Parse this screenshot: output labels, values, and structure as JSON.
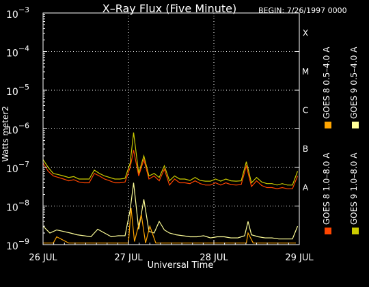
{
  "chart_data": {
    "type": "line",
    "title": "X–Ray Flux (Five Minute)",
    "begin_label": "BEGIN: 7/26/1997 0000",
    "xlabel": "Universal Time",
    "ylabel": "Watts meter2",
    "y_scale": "log",
    "ylim": [
      1e-09,
      0.001
    ],
    "x_ticks": [
      "26 JUL",
      "27 JUL",
      "28 JUL",
      "29 JUL"
    ],
    "xlim_days": [
      0,
      3
    ],
    "y_ticks": [
      {
        "base": "10",
        "exp": "−9",
        "value": 1e-09
      },
      {
        "base": "10",
        "exp": "−8",
        "value": 1e-08
      },
      {
        "base": "10",
        "exp": "−7",
        "value": 1e-07
      },
      {
        "base": "10",
        "exp": "−6",
        "value": 1e-06
      },
      {
        "base": "10",
        "exp": "−5",
        "value": 1e-05
      },
      {
        "base": "10",
        "exp": "−4",
        "value": 0.0001
      },
      {
        "base": "10",
        "exp": "−3",
        "value": 0.001
      }
    ],
    "flare_classes": [
      {
        "label": "A",
        "value": 1e-08
      },
      {
        "label": "B",
        "value": 1e-07
      },
      {
        "label": "C",
        "value": 1e-06
      },
      {
        "label": "M",
        "value": 1e-05
      },
      {
        "label": "X",
        "value": 0.0001
      }
    ],
    "grid": true,
    "series": [
      {
        "name": "GOES 8  1.0–8.0 A",
        "color": "#ff4500",
        "x": [
          0,
          0.06,
          0.12,
          0.18,
          0.24,
          0.3,
          0.36,
          0.42,
          0.48,
          0.54,
          0.6,
          0.66,
          0.72,
          0.78,
          0.84,
          0.9,
          0.96,
          1.02,
          1.06,
          1.12,
          1.18,
          1.24,
          1.3,
          1.36,
          1.42,
          1.48,
          1.54,
          1.6,
          1.66,
          1.72,
          1.78,
          1.84,
          1.9,
          1.96,
          2.02,
          2.08,
          2.14,
          2.2,
          2.26,
          2.32,
          2.38,
          2.44,
          2.5,
          2.56,
          2.62,
          2.68,
          2.74,
          2.8,
          2.86,
          2.92,
          2.98
        ],
        "y": [
          1.3e-07,
          8e-08,
          6e-08,
          5.5e-08,
          5e-08,
          4.5e-08,
          4.8e-08,
          4.2e-08,
          4e-08,
          4e-08,
          7e-08,
          6e-08,
          5e-08,
          4.5e-08,
          4e-08,
          4e-08,
          4.2e-08,
          1e-07,
          2.8e-07,
          6e-08,
          1.6e-07,
          5e-08,
          6e-08,
          4.5e-08,
          9e-08,
          3.5e-08,
          5e-08,
          4e-08,
          4e-08,
          3.8e-08,
          4.5e-08,
          3.8e-08,
          3.5e-08,
          3.5e-08,
          4e-08,
          3.5e-08,
          4e-08,
          3.6e-08,
          3.5e-08,
          3.6e-08,
          1.1e-07,
          3.2e-08,
          4.5e-08,
          3.4e-08,
          3e-08,
          3e-08,
          2.8e-08,
          3e-08,
          2.8e-08,
          2.8e-08,
          6e-08
        ]
      },
      {
        "name": "GOES 8  0.5–4.0 A",
        "color": "#ffa500",
        "x": [
          0,
          0.12,
          0.16,
          0.3,
          0.52,
          0.7,
          0.92,
          1.0,
          1.03,
          1.07,
          1.15,
          1.2,
          1.25,
          1.32,
          1.48,
          1.6,
          1.95,
          2.22,
          2.38,
          2.4,
          2.46,
          2.8,
          2.96
        ],
        "y": [
          1.1e-09,
          1.1e-09,
          1.6e-09,
          1.1e-09,
          1.1e-09,
          1.1e-09,
          1.1e-09,
          1.1e-09,
          9e-09,
          1.2e-09,
          6e-09,
          1.1e-09,
          3e-09,
          1.1e-09,
          1.1e-09,
          1.1e-09,
          1.1e-09,
          1.1e-09,
          1.1e-09,
          2e-09,
          1.1e-09,
          1.1e-09,
          1.1e-09
        ]
      },
      {
        "name": "GOES 9  1.0–8.0 A",
        "color": "#cccc00",
        "x": [
          0,
          0.06,
          0.12,
          0.18,
          0.24,
          0.3,
          0.36,
          0.42,
          0.48,
          0.54,
          0.6,
          0.66,
          0.72,
          0.78,
          0.84,
          0.9,
          0.96,
          1.02,
          1.06,
          1.12,
          1.18,
          1.24,
          1.3,
          1.36,
          1.42,
          1.48,
          1.54,
          1.6,
          1.66,
          1.72,
          1.78,
          1.84,
          1.9,
          1.96,
          2.02,
          2.08,
          2.14,
          2.2,
          2.26,
          2.32,
          2.38,
          2.44,
          2.5,
          2.56,
          2.62,
          2.68,
          2.74,
          2.8,
          2.86,
          2.92,
          2.98
        ],
        "y": [
          1.6e-07,
          1e-07,
          7e-08,
          6.5e-08,
          6e-08,
          5.5e-08,
          5.8e-08,
          5e-08,
          5e-08,
          5e-08,
          8.5e-08,
          7e-08,
          6e-08,
          5.5e-08,
          5e-08,
          5e-08,
          5.2e-08,
          1.3e-07,
          8e-07,
          7e-08,
          2e-07,
          6e-08,
          7e-08,
          5.5e-08,
          1.1e-07,
          4.5e-08,
          6e-08,
          5e-08,
          5e-08,
          4.6e-08,
          5.5e-08,
          4.6e-08,
          4.4e-08,
          4.4e-08,
          5e-08,
          4.4e-08,
          5e-08,
          4.5e-08,
          4.4e-08,
          4.5e-08,
          1.4e-07,
          4e-08,
          5.5e-08,
          4.2e-08,
          3.8e-08,
          3.8e-08,
          3.5e-08,
          3.8e-08,
          3.5e-08,
          3.5e-08,
          8e-08
        ]
      },
      {
        "name": "GOES 9  0.5–4.0 A",
        "color": "#ffff99",
        "x": [
          0,
          0.08,
          0.16,
          0.24,
          0.32,
          0.4,
          0.48,
          0.56,
          0.64,
          0.72,
          0.8,
          0.88,
          0.96,
          1.02,
          1.06,
          1.12,
          1.18,
          1.24,
          1.3,
          1.36,
          1.42,
          1.48,
          1.56,
          1.64,
          1.72,
          1.8,
          1.88,
          1.96,
          2.04,
          2.12,
          2.2,
          2.28,
          2.36,
          2.4,
          2.44,
          2.52,
          2.6,
          2.68,
          2.76,
          2.84,
          2.92,
          2.98
        ],
        "y": [
          3e-09,
          2e-09,
          2.4e-09,
          2.2e-09,
          2e-09,
          1.8e-09,
          1.7e-09,
          1.6e-09,
          2.5e-09,
          2e-09,
          1.6e-09,
          1.7e-09,
          1.7e-09,
          8e-09,
          4e-08,
          2.5e-09,
          1.5e-08,
          2.2e-09,
          2e-09,
          4e-09,
          2.4e-09,
          2e-09,
          1.8e-09,
          1.7e-09,
          1.6e-09,
          1.6e-09,
          1.7e-09,
          1.5e-09,
          1.6e-09,
          1.6e-09,
          1.5e-09,
          1.5e-09,
          1.7e-09,
          4e-09,
          1.8e-09,
          1.6e-09,
          1.5e-09,
          1.5e-09,
          1.4e-09,
          1.4e-09,
          1.4e-09,
          3e-09
        ]
      }
    ]
  }
}
